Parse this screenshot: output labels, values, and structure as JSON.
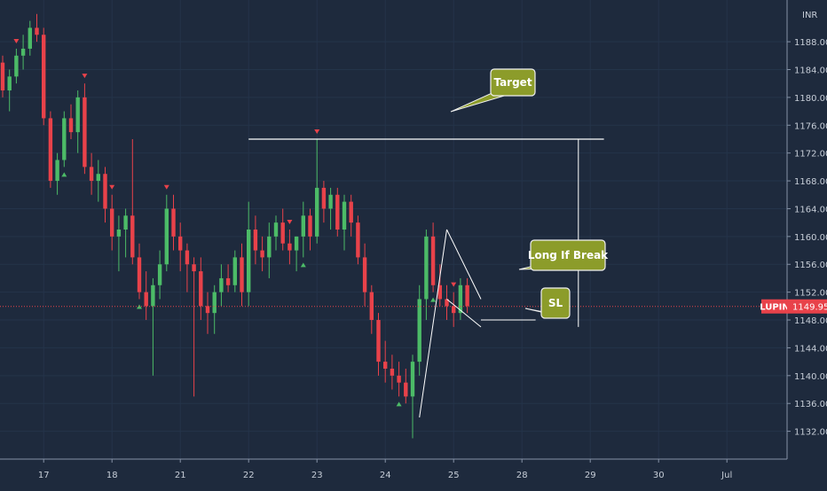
{
  "chart_data": {
    "type": "candlestick",
    "symbol": "LUPIN",
    "currency": "INR",
    "last_price": 1149.95,
    "ylim": [
      1128,
      1194
    ],
    "y_ticks": [
      1132,
      1136,
      1140,
      1144,
      1148,
      1152,
      1156,
      1160,
      1164,
      1168,
      1172,
      1176,
      1180,
      1184,
      1188
    ],
    "y_tick_labels": [
      "1132.00",
      "1136.00",
      "1140.00",
      "1144.00",
      "1148.00",
      "1152.00",
      "1156.00",
      "1160.00",
      "1164.00",
      "1168.00",
      "1172.00",
      "1176.00",
      "1180.00",
      "1184.00",
      "1188.00"
    ],
    "x_ticks": [
      {
        "label": "17",
        "bar": 6
      },
      {
        "label": "18",
        "bar": 16
      },
      {
        "label": "21",
        "bar": 26
      },
      {
        "label": "22",
        "bar": 36
      },
      {
        "label": "23",
        "bar": 46
      },
      {
        "label": "24",
        "bar": 56
      },
      {
        "label": "25",
        "bar": 66
      },
      {
        "label": "28",
        "bar": 76
      },
      {
        "label": "29",
        "bar": 86
      },
      {
        "label": "30",
        "bar": 96
      },
      {
        "label": "Jul",
        "bar": 106
      }
    ],
    "bars": [
      [
        1185,
        1186,
        1180,
        1181
      ],
      [
        1181,
        1184,
        1178,
        1183
      ],
      [
        1183,
        1187,
        1182,
        1186
      ],
      [
        1186,
        1189,
        1184,
        1187
      ],
      [
        1187,
        1191,
        1186,
        1190
      ],
      [
        1190,
        1192,
        1188,
        1189
      ],
      [
        1189,
        1190,
        1176,
        1177
      ],
      [
        1177,
        1178,
        1167,
        1168
      ],
      [
        1168,
        1172,
        1166,
        1171
      ],
      [
        1171,
        1178,
        1170,
        1177
      ],
      [
        1177,
        1179,
        1174,
        1175
      ],
      [
        1175,
        1181,
        1172,
        1180
      ],
      [
        1180,
        1182,
        1169,
        1170
      ],
      [
        1170,
        1172,
        1166,
        1168
      ],
      [
        1168,
        1171,
        1165,
        1169
      ],
      [
        1169,
        1170,
        1162,
        1164
      ],
      [
        1164,
        1166,
        1158,
        1160
      ],
      [
        1160,
        1163,
        1155,
        1161
      ],
      [
        1161,
        1164,
        1157,
        1163
      ],
      [
        1163,
        1174,
        1156,
        1157
      ],
      [
        1157,
        1159,
        1151,
        1152
      ],
      [
        1152,
        1155,
        1148,
        1150
      ],
      [
        1150,
        1154,
        1140,
        1153
      ],
      [
        1153,
        1158,
        1151,
        1156
      ],
      [
        1156,
        1166,
        1155,
        1164
      ],
      [
        1164,
        1166,
        1158,
        1160
      ],
      [
        1160,
        1162,
        1155,
        1158
      ],
      [
        1158,
        1159,
        1152,
        1156
      ],
      [
        1156,
        1157,
        1137,
        1155
      ],
      [
        1155,
        1157,
        1148,
        1150
      ],
      [
        1150,
        1152,
        1146,
        1149
      ],
      [
        1149,
        1153,
        1146,
        1152
      ],
      [
        1152,
        1156,
        1150,
        1154
      ],
      [
        1154,
        1156,
        1152,
        1153
      ],
      [
        1153,
        1158,
        1152,
        1157
      ],
      [
        1157,
        1159,
        1150,
        1152
      ],
      [
        1152,
        1165,
        1150,
        1161
      ],
      [
        1161,
        1163,
        1156,
        1158
      ],
      [
        1158,
        1160,
        1155,
        1157
      ],
      [
        1157,
        1162,
        1154,
        1160
      ],
      [
        1160,
        1163,
        1158,
        1162
      ],
      [
        1162,
        1164,
        1158,
        1159
      ],
      [
        1159,
        1161,
        1156,
        1158
      ],
      [
        1158,
        1160,
        1155,
        1160
      ],
      [
        1160,
        1165,
        1157,
        1163
      ],
      [
        1163,
        1164,
        1158,
        1160
      ],
      [
        1160,
        1174,
        1159,
        1167
      ],
      [
        1167,
        1168,
        1162,
        1164
      ],
      [
        1164,
        1167,
        1161,
        1166
      ],
      [
        1166,
        1167,
        1160,
        1161
      ],
      [
        1161,
        1166,
        1158,
        1165
      ],
      [
        1165,
        1166,
        1160,
        1162
      ],
      [
        1162,
        1163,
        1156,
        1157
      ],
      [
        1157,
        1159,
        1150,
        1152
      ],
      [
        1152,
        1153,
        1146,
        1148
      ],
      [
        1148,
        1149,
        1140,
        1142
      ],
      [
        1142,
        1145,
        1139,
        1141
      ],
      [
        1141,
        1143,
        1138,
        1140
      ],
      [
        1140,
        1142,
        1137,
        1139
      ],
      [
        1139,
        1141,
        1136,
        1137
      ],
      [
        1137,
        1143,
        1131,
        1142
      ],
      [
        1142,
        1153,
        1140,
        1151
      ],
      [
        1151,
        1161,
        1148,
        1160
      ],
      [
        1160,
        1162,
        1152,
        1153
      ],
      [
        1153,
        1156,
        1150,
        1151
      ],
      [
        1151,
        1153,
        1148,
        1150
      ],
      [
        1150,
        1152,
        1147,
        1149
      ],
      [
        1149,
        1154,
        1148,
        1153
      ],
      [
        1153,
        1154,
        1149,
        1150
      ]
    ],
    "markers_up_bars": [
      9,
      20,
      44,
      58,
      63
    ],
    "markers_down_bars": [
      2,
      12,
      16,
      24,
      42,
      46,
      66
    ],
    "drawings": {
      "target_level": 1174,
      "target_line_from_bar": 36,
      "target_line_to_bar": 88,
      "projection_bar": 84,
      "projection_from": 1147,
      "projection_to": 1174,
      "channel_upper_from": [
        65,
        1161
      ],
      "channel_upper_to": [
        70,
        1151
      ],
      "channel_lower_from": [
        65,
        1151
      ],
      "channel_lower_to": [
        70,
        1147
      ],
      "sl_level": 1148
    },
    "callouts": {
      "target": "Target",
      "long_if_break": "Long If Break",
      "sl": "SL"
    }
  }
}
